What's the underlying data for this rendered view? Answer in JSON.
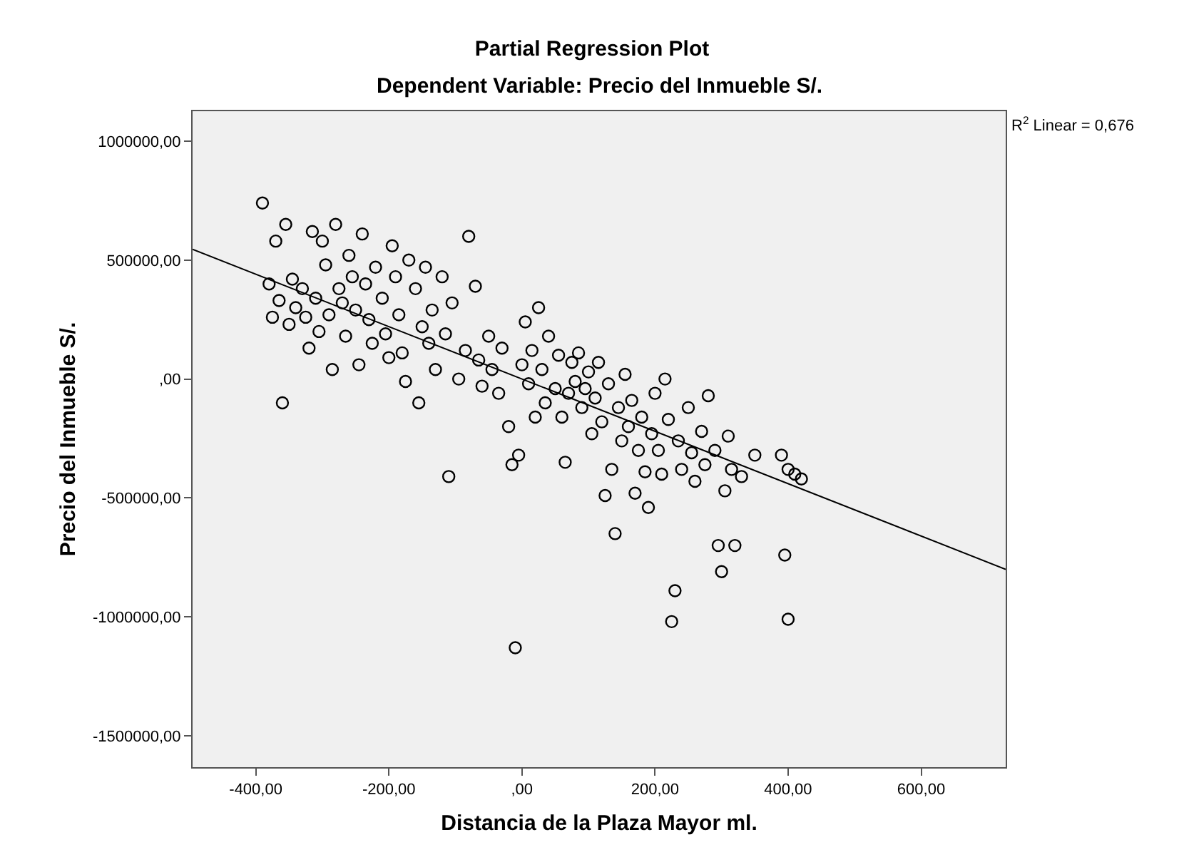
{
  "chart_data": {
    "type": "scatter",
    "title": "Partial Regression Plot",
    "subtitle": "Dependent Variable: Precio del Inmueble S/.",
    "xlabel": "Distancia de la Plaza Mayor ml.",
    "ylabel": "Precio del Inmueble S/.",
    "annotations": [
      "R$^{2}$ Linear = 0,676"
    ],
    "xlim": [
      -495,
      727
    ],
    "ylim": [
      -1632000,
      1126000
    ],
    "xticks": [
      {
        "value": -400,
        "label": "-400,00"
      },
      {
        "value": -200,
        "label": "-200,00"
      },
      {
        "value": 0,
        "label": ",00"
      },
      {
        "value": 200,
        "label": "200,00"
      },
      {
        "value": 400,
        "label": "400,00"
      },
      {
        "value": 600,
        "label": "600,00"
      }
    ],
    "yticks": [
      {
        "value": 1000000,
        "label": "1000000,00"
      },
      {
        "value": 500000,
        "label": "500000,00"
      },
      {
        "value": 0,
        "label": ",00"
      },
      {
        "value": -500000,
        "label": "-500000,00"
      },
      {
        "value": -1000000,
        "label": "-1000000,00"
      },
      {
        "value": -1500000,
        "label": "-1500000,00"
      }
    ],
    "grid": false,
    "marker": "circle",
    "series": [
      {
        "color": "#000000",
        "x": [
          -390,
          -380,
          -375,
          -370,
          -365,
          -360,
          -355,
          -350,
          -345,
          -340,
          -330,
          -325,
          -320,
          -315,
          -310,
          -305,
          -300,
          -295,
          -290,
          -285,
          -280,
          -275,
          -270,
          -265,
          -260,
          -255,
          -250,
          -245,
          -240,
          -235,
          -230,
          -225,
          -220,
          -210,
          -205,
          -200,
          -195,
          -190,
          -185,
          -180,
          -175,
          -170,
          -160,
          -155,
          -150,
          -145,
          -140,
          -135,
          -130,
          -120,
          -115,
          -110,
          -105,
          -95,
          -85,
          -80,
          -70,
          -65,
          -60,
          -50,
          -45,
          -35,
          -30,
          -20,
          -15,
          -10,
          -5,
          0,
          5,
          10,
          15,
          20,
          25,
          30,
          35,
          40,
          50,
          55,
          60,
          65,
          70,
          75,
          80,
          85,
          90,
          95,
          100,
          105,
          110,
          115,
          120,
          125,
          130,
          135,
          140,
          145,
          150,
          155,
          160,
          165,
          170,
          175,
          180,
          185,
          190,
          195,
          200,
          205,
          210,
          215,
          220,
          225,
          230,
          235,
          240,
          250,
          255,
          260,
          270,
          275,
          280,
          290,
          295,
          300,
          305,
          310,
          315,
          320,
          330,
          350,
          390,
          395,
          400,
          400,
          410,
          420
        ],
        "values": [
          740000,
          400000,
          260000,
          580000,
          330000,
          -100000,
          650000,
          230000,
          420000,
          300000,
          380000,
          260000,
          130000,
          620000,
          340000,
          200000,
          580000,
          480000,
          270000,
          40000,
          650000,
          380000,
          320000,
          180000,
          520000,
          430000,
          290000,
          60000,
          610000,
          400000,
          250000,
          150000,
          470000,
          340000,
          190000,
          90000,
          560000,
          430000,
          270000,
          110000,
          -10000,
          500000,
          380000,
          -100000,
          220000,
          470000,
          150000,
          290000,
          40000,
          430000,
          190000,
          -410000,
          320000,
          0,
          120000,
          600000,
          390000,
          80000,
          -30000,
          180000,
          40000,
          -60000,
          130000,
          -200000,
          -360000,
          -1130000,
          -320000,
          60000,
          240000,
          -20000,
          120000,
          -160000,
          300000,
          40000,
          -100000,
          180000,
          -40000,
          100000,
          -160000,
          -350000,
          -60000,
          70000,
          -10000,
          110000,
          -120000,
          -40000,
          30000,
          -230000,
          -80000,
          70000,
          -180000,
          -490000,
          -20000,
          -380000,
          -650000,
          -120000,
          -260000,
          20000,
          -200000,
          -90000,
          -480000,
          -300000,
          -160000,
          -390000,
          -540000,
          -230000,
          -60000,
          -300000,
          -400000,
          0,
          -170000,
          -1020000,
          -890000,
          -260000,
          -380000,
          -120000,
          -310000,
          -430000,
          -220000,
          -360000,
          -70000,
          -300000,
          -700000,
          -810000,
          -470000,
          -240000,
          -380000,
          -700000,
          -410000,
          -320000,
          -320000,
          -740000,
          -1010000,
          -380000,
          -400000,
          -420000
        ]
      },
      {
        "type": "line",
        "color": "#000000",
        "marker": "none",
        "x": [
          -495,
          727
        ],
        "values": [
          545000,
          -800000
        ]
      }
    ]
  }
}
